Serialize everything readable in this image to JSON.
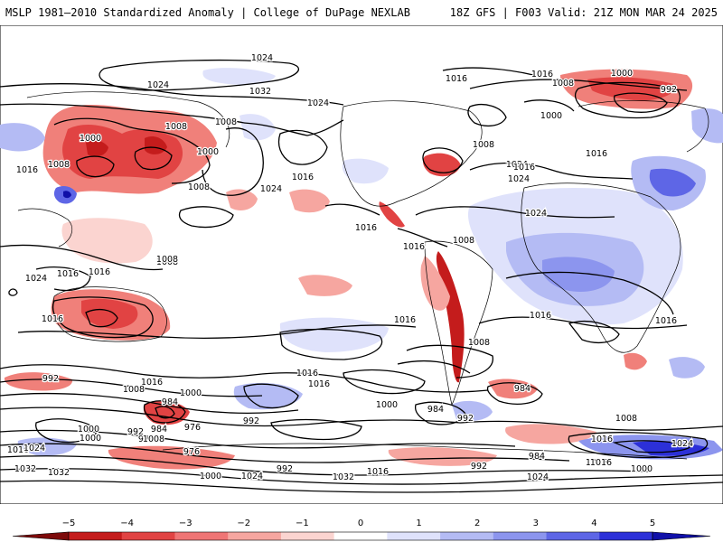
{
  "header": {
    "left_title": "MSLP 1981–2010 Standardized Anomaly | College of DuPage NEXLAB",
    "right_title": "18Z GFS | F003 Valid: 21Z MON MAR 24 2025"
  },
  "map": {
    "projection": "global",
    "background": "#ffffff",
    "contour_color": "#000000",
    "coastline_color": "#000000"
  },
  "colorbar": {
    "ticks": [
      "−5",
      "−4",
      "−3",
      "−2",
      "−1",
      "0",
      "1",
      "2",
      "3",
      "4",
      "5"
    ],
    "colors": [
      "#7d0a0a",
      "#c41c1c",
      "#e14343",
      "#ef7575",
      "#f6a6a0",
      "#fbd4d0",
      "#ffffff",
      "#dfe2fb",
      "#b4bbf4",
      "#8c95ee",
      "#5e66e6",
      "#2c30d8",
      "#1010a8"
    ]
  },
  "isobar_labels": [
    "1024",
    "1024",
    "1032",
    "1024",
    "1016",
    "1016",
    "1000",
    "992",
    "1008",
    "1000",
    "1016",
    "1008",
    "1008",
    "1000",
    "1016",
    "1008",
    "1024",
    "1024",
    "1016",
    "1000",
    "1016",
    "1024",
    "1008",
    "1008",
    "1008",
    "1016",
    "1008",
    "1016",
    "1024",
    "1016",
    "1008",
    "1016",
    "1024",
    "1016",
    "1008",
    "1016",
    "1016",
    "1016",
    "992",
    "1016",
    "1008",
    "1000",
    "984",
    "976",
    "992",
    "1000",
    "984",
    "992",
    "1016",
    "1016",
    "984",
    "1000",
    "992",
    "984",
    "976",
    "1000",
    "984",
    "1016",
    "1032",
    "1032",
    "1008",
    "1024",
    "992",
    "984",
    "1016",
    "1008",
    "992",
    "1024",
    "1032",
    "1016",
    "1024",
    "1000",
    "1016",
    "1024",
    "1016",
    "1000"
  ]
}
